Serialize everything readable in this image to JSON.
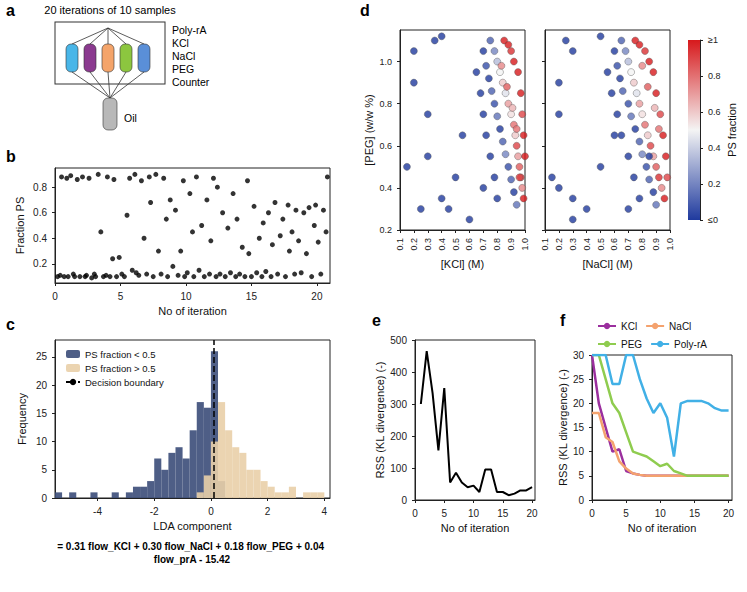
{
  "diagram": {
    "panel": "a",
    "title": "20 iterations of 10 samples",
    "inputs": [
      "Poly-rA",
      "KCl",
      "NaCl",
      "PEG",
      "Counter"
    ],
    "output": "Oil"
  },
  "chart_data": [
    {
      "panel": "b",
      "type": "scatter",
      "color": "#000000",
      "marker": "circle",
      "grid": false,
      "xlabel": "No of iteration",
      "ylabel": "Fraction PS",
      "xlim": [
        0,
        21
      ],
      "xticks": [
        0,
        5,
        10,
        15,
        20
      ],
      "ylim": [
        0.05,
        0.95
      ],
      "yticks": [
        0.2,
        0.4,
        0.6,
        0.8
      ],
      "x": [
        0.2,
        0.4,
        0.5,
        0.7,
        0.9,
        1.0,
        1.2,
        1.4,
        1.5,
        1.7,
        1.9,
        2.1,
        2.3,
        2.4,
        2.6,
        2.8,
        3.0,
        3.1,
        3.3,
        3.5,
        3.7,
        3.9,
        4.0,
        4.2,
        4.4,
        4.5,
        4.7,
        4.9,
        5.1,
        5.3,
        5.5,
        5.7,
        5.9,
        6.1,
        6.2,
        6.4,
        6.6,
        6.8,
        7.0,
        7.2,
        7.3,
        7.5,
        7.7,
        7.9,
        8.1,
        8.3,
        8.5,
        8.6,
        8.8,
        9.0,
        9.2,
        9.4,
        9.6,
        9.8,
        9.9,
        10.1,
        10.3,
        10.5,
        10.6,
        10.8,
        11.0,
        11.2,
        11.4,
        11.6,
        11.8,
        11.9,
        12.1,
        12.3,
        12.4,
        12.6,
        12.8,
        13.0,
        13.2,
        13.4,
        13.6,
        13.8,
        13.9,
        14.1,
        14.3,
        14.5,
        14.7,
        14.8,
        15.0,
        15.2,
        15.4,
        15.6,
        15.8,
        15.9,
        16.1,
        16.3,
        16.5,
        16.6,
        16.8,
        17.0,
        17.2,
        17.4,
        17.6,
        17.8,
        17.9,
        18.1,
        18.3,
        18.4,
        18.6,
        18.8,
        19.0,
        19.2,
        19.4,
        19.6,
        19.8,
        19.9,
        20.1,
        20.3,
        20.5,
        20.7,
        20.8
      ],
      "y": [
        0.1,
        0.11,
        0.88,
        0.1,
        0.87,
        0.1,
        0.89,
        0.12,
        0.1,
        0.86,
        0.1,
        0.88,
        0.1,
        0.11,
        0.87,
        0.09,
        0.12,
        0.1,
        0.9,
        0.45,
        0.1,
        0.11,
        0.88,
        0.1,
        0.24,
        0.86,
        0.1,
        0.25,
        0.12,
        0.1,
        0.58,
        0.87,
        0.15,
        0.9,
        0.13,
        0.11,
        0.85,
        0.4,
        0.12,
        0.88,
        0.68,
        0.1,
        0.9,
        0.3,
        0.12,
        0.87,
        0.55,
        0.1,
        0.7,
        0.18,
        0.62,
        0.11,
        0.3,
        0.85,
        0.1,
        0.13,
        0.75,
        0.45,
        0.1,
        0.88,
        0.15,
        0.5,
        0.1,
        0.7,
        0.12,
        0.38,
        0.87,
        0.1,
        0.8,
        0.12,
        0.6,
        0.1,
        0.48,
        0.13,
        0.75,
        0.1,
        0.55,
        0.12,
        0.33,
        0.1,
        0.85,
        0.28,
        0.1,
        0.65,
        0.13,
        0.4,
        0.1,
        0.52,
        0.14,
        0.6,
        0.1,
        0.35,
        0.68,
        0.12,
        0.42,
        0.55,
        0.1,
        0.66,
        0.3,
        0.45,
        0.12,
        0.62,
        0.38,
        0.13,
        0.6,
        0.28,
        0.64,
        0.1,
        0.5,
        0.66,
        0.37,
        0.12,
        0.62,
        0.45,
        0.88
      ]
    },
    {
      "panel": "c",
      "type": "histogram",
      "grid": false,
      "legend": "upper left",
      "xlabel": "LDA component",
      "ylabel": "Frequency",
      "annotation": "= 0.31 flow_KCl + 0.30 flow_NaCl + 0.18 flow_PEG + 0.04 flow_prA - 15.42",
      "xlim": [
        -5.5,
        4.2
      ],
      "xticks": [
        -4,
        -2,
        0,
        2,
        4
      ],
      "ylim": [
        0,
        28
      ],
      "yticks": [
        0,
        5,
        10,
        15,
        20,
        25
      ],
      "bins": [
        -5.5,
        -5.25,
        -5,
        -4.75,
        -4.5,
        -4.25,
        -4,
        -3.75,
        -3.5,
        -3.25,
        -3,
        -2.75,
        -2.5,
        -2.25,
        -2,
        -1.75,
        -1.5,
        -1.25,
        -1,
        -0.75,
        -0.5,
        -0.25,
        0,
        0.25,
        0.5,
        0.75,
        1,
        1.25,
        1.5,
        1.75,
        2,
        2.25,
        2.5,
        2.75,
        3,
        3.25,
        3.5,
        3.75,
        4
      ],
      "series": [
        {
          "name": "PS fraction < 0.5",
          "color": "#3b4d79",
          "values": [
            1,
            0,
            1,
            0,
            0,
            1,
            0,
            0,
            1,
            0,
            1,
            2,
            2,
            3,
            7,
            5,
            8,
            9,
            7,
            12,
            17,
            16,
            26,
            3,
            0,
            0,
            0,
            0,
            0,
            0,
            0,
            0,
            0,
            0,
            0,
            0,
            0,
            0
          ]
        },
        {
          "name": "PS fraction > 0.5",
          "color": "#e9cfa8",
          "values": [
            0,
            0,
            0,
            0,
            0,
            0,
            0,
            0,
            0,
            0,
            0,
            0,
            0,
            0,
            0,
            0,
            0,
            0,
            0,
            0,
            1,
            4,
            10,
            17,
            12,
            9,
            8,
            5,
            5,
            3,
            2,
            1,
            1,
            2,
            0,
            1,
            1,
            1
          ]
        },
        {
          "name": "Decision boundary",
          "type": "vline",
          "x": 0.1,
          "color": "#000000",
          "line_style": "dashed"
        }
      ]
    },
    {
      "panel": "d",
      "type": "scatter3d",
      "grid": false,
      "dimensions": [
        "[KCl] (M)",
        "[NaCl] (M)",
        "[PEG] (w/w %)",
        "PS fraction"
      ],
      "xlim": [
        0.1,
        1.0
      ],
      "xticks": [
        0.1,
        0.2,
        0.3,
        0.4,
        0.5,
        0.6,
        0.7,
        0.8,
        0.9,
        {
          "value": 1,
          "label": "1.0"
        }
      ],
      "ylim": [
        0.1,
        1.0
      ],
      "yticks": [
        0.1,
        0.2,
        0.3,
        0.4,
        0.5,
        0.6,
        0.7,
        0.8,
        0.9,
        {
          "value": 1,
          "label": "1.0"
        }
      ],
      "zlim": [
        0.2,
        1.15
      ],
      "zticks": [
        0.2,
        0.4,
        0.6,
        0.8,
        {
          "value": 1,
          "label": "1.0"
        }
      ],
      "colorbar": {
        "range": [
          0,
          1
        ],
        "ticks": [
          {
            "value": 0,
            "label": "≤0"
          },
          0.2,
          0.4,
          0.6,
          0.8,
          {
            "value": 1,
            "label": "≥1"
          }
        ],
        "colors": [
          "#1f3a9e",
          "#f4f4f4",
          "#d7191c"
        ]
      },
      "points": [
        [
          0.2,
          0.3,
          1.05,
          0
        ],
        [
          0.3,
          0.2,
          0.75,
          0
        ],
        [
          0.15,
          0.5,
          0.5,
          0
        ],
        [
          0.25,
          0.4,
          0.3,
          0
        ],
        [
          0.5,
          0.15,
          0.45,
          0
        ],
        [
          0.2,
          0.2,
          0.9,
          0
        ],
        [
          0.4,
          0.3,
          0.35,
          0
        ],
        [
          0.35,
          0.25,
          1.1,
          0
        ],
        [
          0.6,
          0.3,
          0.25,
          0
        ],
        [
          0.7,
          0.2,
          0.4,
          0
        ],
        [
          0.75,
          0.65,
          1.1,
          0.1
        ],
        [
          0.78,
          0.68,
          1.05,
          0.2
        ],
        [
          0.8,
          0.7,
          1.0,
          0.35
        ],
        [
          0.82,
          0.72,
          0.95,
          0.5
        ],
        [
          0.84,
          0.74,
          0.9,
          0.6
        ],
        [
          0.86,
          0.76,
          0.85,
          0.45
        ],
        [
          0.88,
          0.78,
          0.8,
          0.7
        ],
        [
          0.9,
          0.8,
          0.75,
          0.55
        ],
        [
          0.92,
          0.82,
          0.7,
          0.8
        ],
        [
          0.93,
          0.84,
          0.65,
          0.6
        ],
        [
          0.94,
          0.86,
          0.6,
          0.9
        ],
        [
          0.95,
          0.88,
          0.55,
          0.7
        ],
        [
          0.96,
          0.9,
          0.5,
          0.85
        ],
        [
          0.97,
          0.92,
          0.45,
          0.95
        ],
        [
          0.98,
          0.94,
          0.4,
          0.75
        ],
        [
          0.99,
          0.96,
          0.35,
          1.0
        ],
        [
          0.7,
          0.6,
          1.05,
          0
        ],
        [
          0.72,
          0.62,
          0.98,
          0.05
        ],
        [
          0.74,
          0.64,
          0.92,
          0
        ],
        [
          0.76,
          0.66,
          0.86,
          0.1
        ],
        [
          0.78,
          0.7,
          0.8,
          0.05
        ],
        [
          0.8,
          0.72,
          0.74,
          0.15
        ],
        [
          0.82,
          0.75,
          0.68,
          0
        ],
        [
          0.84,
          0.78,
          0.62,
          0.1
        ],
        [
          0.86,
          0.8,
          0.56,
          0.2
        ],
        [
          0.88,
          0.83,
          0.5,
          0.05
        ],
        [
          0.9,
          0.85,
          0.44,
          0.1
        ],
        [
          0.92,
          0.88,
          0.38,
          0
        ],
        [
          0.94,
          0.9,
          0.32,
          0.15
        ],
        [
          0.65,
          0.55,
          0.95,
          0
        ],
        [
          0.68,
          0.58,
          0.85,
          0
        ],
        [
          0.7,
          0.62,
          0.75,
          0
        ],
        [
          0.72,
          0.65,
          0.65,
          0
        ],
        [
          0.75,
          0.7,
          0.55,
          0
        ],
        [
          0.78,
          0.74,
          0.45,
          0
        ],
        [
          0.8,
          0.78,
          0.35,
          0
        ],
        [
          0.85,
          0.75,
          1.1,
          1.0
        ],
        [
          0.88,
          0.78,
          1.08,
          1.0
        ],
        [
          0.9,
          0.82,
          1.05,
          0.95
        ],
        [
          0.92,
          0.85,
          1.0,
          1.0
        ],
        [
          0.95,
          0.88,
          0.95,
          1.0
        ],
        [
          0.97,
          0.9,
          0.85,
          1.0
        ],
        [
          0.98,
          0.93,
          0.75,
          0.9
        ],
        [
          0.99,
          0.95,
          0.65,
          1.0
        ],
        [
          1.0,
          0.97,
          0.55,
          1.0
        ],
        [
          0.96,
          0.98,
          0.45,
          0.9
        ],
        [
          0.83,
          0.8,
          0.98,
          0.75
        ],
        [
          0.87,
          0.84,
          0.88,
          0.85
        ],
        [
          0.91,
          0.89,
          0.78,
          0.65
        ],
        [
          0.94,
          0.92,
          0.68,
          0.8
        ],
        [
          0.4,
          0.5,
          1.12,
          0
        ],
        [
          0.55,
          0.6,
          0.65,
          0
        ],
        [
          0.3,
          0.85,
          0.55,
          0
        ],
        [
          0.45,
          0.7,
          0.3,
          0
        ]
      ]
    },
    {
      "panel": "e",
      "type": "line",
      "color": "#000000",
      "grid": false,
      "xlabel": "No of iteration",
      "ylabel": "RSS (KL divergence) (-)",
      "xlim": [
        0,
        20.5
      ],
      "xticks": [
        0,
        5,
        10,
        15,
        20
      ],
      "ylim": [
        0,
        500
      ],
      "yticks": [
        0,
        100,
        200,
        300,
        400,
        500
      ],
      "x": [
        1,
        2,
        3,
        4,
        5,
        6,
        7,
        8,
        9,
        10,
        11,
        12,
        13,
        14,
        15,
        16,
        17,
        18,
        19,
        20
      ],
      "values": [
        300,
        465,
        335,
        155,
        350,
        55,
        85,
        55,
        40,
        45,
        25,
        95,
        95,
        25,
        25,
        15,
        20,
        30,
        30,
        40
      ]
    },
    {
      "panel": "f",
      "type": "line",
      "grid": false,
      "legend": "top",
      "xlabel": "No of iteration",
      "ylabel": "RSS (KL divergence) (-)",
      "xlim": [
        0,
        20.5
      ],
      "xticks": [
        0,
        5,
        10,
        15,
        20
      ],
      "ylim": [
        0,
        30
      ],
      "yticks": [
        0,
        5,
        10,
        15,
        20,
        25,
        30
      ],
      "x": [
        0,
        1,
        2,
        3,
        4,
        5,
        6,
        7,
        8,
        9,
        10,
        11,
        12,
        13,
        14,
        15,
        16,
        17,
        18,
        19,
        20
      ],
      "series": [
        {
          "name": "KCl",
          "color": "#9b2f9e",
          "values": [
            30,
            20,
            15,
            10,
            10.5,
            6,
            5.5,
            5.2,
            5,
            5,
            5,
            5,
            5,
            5,
            5,
            5,
            5,
            5,
            5,
            5,
            5
          ]
        },
        {
          "name": "NaCl",
          "color": "#f4a26e",
          "values": [
            18,
            18,
            13,
            12,
            8,
            6.5,
            5.5,
            5.2,
            5,
            5,
            5,
            5,
            5,
            5,
            5,
            5,
            5,
            5,
            5,
            5,
            5
          ]
        },
        {
          "name": "PEG",
          "color": "#8fcc4f",
          "values": [
            30,
            30,
            25,
            20,
            18,
            14,
            10,
            9.5,
            9,
            8,
            7,
            7.5,
            6,
            5.5,
            5,
            5,
            5,
            5,
            5,
            5,
            5
          ]
        },
        {
          "name": "Poly-rA",
          "color": "#41b0e6",
          "values": [
            30,
            30,
            30,
            24,
            24,
            30,
            30,
            25,
            21,
            18,
            20,
            17,
            9,
            20,
            20.5,
            20.5,
            20.5,
            20,
            19,
            18.5,
            18.5
          ]
        }
      ]
    }
  ]
}
